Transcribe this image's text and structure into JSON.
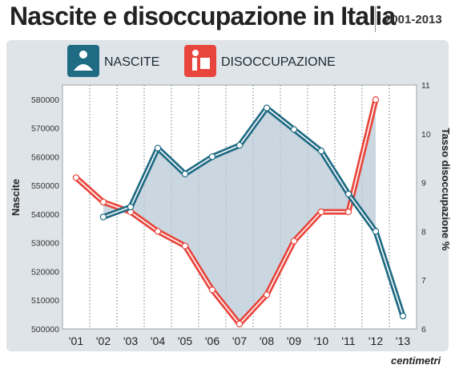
{
  "header": {
    "title": "Nascite e disoccupazione in Italia",
    "period": "2001-2013"
  },
  "legend": {
    "nascite_label": "NASCITE",
    "nascite_icon": "baby-icon",
    "disoccupazione_label": "DISOCCUPAZIONE",
    "disoccupazione_icon": "person-at-desk-icon"
  },
  "footer": {
    "logo": "centimetri"
  },
  "colors": {
    "nascite": "#1f6b84",
    "disoccupazione": "#e8453c",
    "panel": "#dfe4e8",
    "plot_bg": "#ffffff",
    "area_fill": "#b9cad6"
  },
  "chart_data": {
    "type": "line",
    "categories": [
      "'01",
      "'02",
      "'03",
      "'04",
      "'05",
      "'06",
      "'07",
      "'08",
      "'09",
      "'10",
      "'11",
      "'12",
      "'13"
    ],
    "left_axis": {
      "label": "Nascite",
      "ylim": [
        500000,
        585000
      ],
      "ticks": [
        "500000",
        "510000",
        "520000",
        "530000",
        "540000",
        "550000",
        "560000",
        "570000",
        "580000"
      ]
    },
    "right_axis": {
      "label": "Tasso disoccupazione %",
      "ylim": [
        6,
        11
      ],
      "ticks": [
        "6",
        "7",
        "8",
        "9",
        "10",
        "11"
      ]
    },
    "series": [
      {
        "name": "NASCITE",
        "axis": "left",
        "values": [
          null,
          539000,
          542500,
          563000,
          554000,
          560000,
          564000,
          577000,
          569500,
          562000,
          547000,
          534000,
          504500
        ]
      },
      {
        "name": "DISOCCUPAZIONE",
        "axis": "right",
        "values": [
          9.1,
          8.6,
          8.4,
          8.0,
          7.7,
          6.8,
          6.1,
          6.7,
          7.8,
          8.4,
          8.4,
          10.7,
          null
        ]
      }
    ],
    "grid": "vertical-dotted"
  }
}
